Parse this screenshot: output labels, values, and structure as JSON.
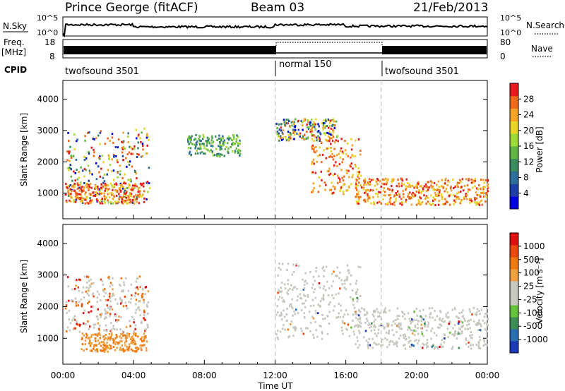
{
  "header": {
    "station": "Prince George (fitACF)",
    "beam": "Beam 03",
    "date": "21/Feb/2013"
  },
  "sky_panel": {
    "left_label": "N.Sky",
    "right_label": "N.Search",
    "left_ticks": [
      "10^5",
      "10^0"
    ],
    "right_ticks": [
      "10^5",
      "10^0"
    ],
    "log_scale": true
  },
  "freq_panel": {
    "label_line1": "Freq.",
    "label_line2": "[MHz]",
    "left_ticks": [
      "18",
      "8"
    ],
    "right_ticks": [
      "80",
      "0"
    ],
    "right_label": "Nave"
  },
  "cpid_panel": {
    "label": "CPID",
    "segments": [
      {
        "name": "twofsound 3501",
        "start_hour": 0,
        "end_hour": 12
      },
      {
        "name": "normal 150",
        "start_hour": 12,
        "end_hour": 18
      },
      {
        "name": "twofsound 3501",
        "start_hour": 18,
        "end_hour": 24
      }
    ]
  },
  "chart_data": [
    {
      "type": "heatmap",
      "ylabel": "Slant Range [km]",
      "xlabel": "Time UT",
      "xlim": [
        0,
        24
      ],
      "ylim": [
        180,
        4600
      ],
      "xticks": [
        "00:00",
        "04:00",
        "08:00",
        "12:00",
        "16:00",
        "20:00",
        "00:00"
      ],
      "yticks": [
        1000,
        2000,
        3000,
        4000
      ],
      "colorbar": {
        "label": "Power [dB]",
        "ticks": [
          "4",
          "8",
          "12",
          "16",
          "20",
          "24",
          "28"
        ],
        "colors": [
          "#0000e0",
          "#1e3fa8",
          "#2e6f9a",
          "#3a8a5f",
          "#5fb544",
          "#9ed93a",
          "#e7d52a",
          "#f5a326",
          "#f06a1c",
          "#e81c1c"
        ]
      },
      "regions": [
        {
          "from_hour": 0.1,
          "to_hour": 4.9,
          "range_km": [
            700,
            3100
          ],
          "level": "mixed",
          "note": ""
        },
        {
          "from_hour": 0.1,
          "to_hour": 4.6,
          "range_km": [
            700,
            1350
          ],
          "level": "high"
        },
        {
          "from_hour": 12.0,
          "to_hour": 15.5,
          "range_km": [
            2700,
            3400
          ],
          "level": "mixed"
        },
        {
          "from_hour": 14.0,
          "to_hour": 16.8,
          "range_km": [
            1000,
            2800
          ],
          "level": "high"
        },
        {
          "from_hour": 16.5,
          "to_hour": 24.0,
          "range_km": [
            650,
            1500
          ],
          "level": "high"
        },
        {
          "from_hour": 7.0,
          "to_hour": 10.0,
          "range_km": [
            2200,
            2900
          ],
          "level": "medium"
        }
      ]
    },
    {
      "type": "heatmap",
      "ylabel": "Slant Range [km]",
      "xlabel": "Time UT",
      "xlim": [
        0,
        24
      ],
      "ylim": [
        180,
        4600
      ],
      "xticks": [
        "00:00",
        "04:00",
        "08:00",
        "12:00",
        "16:00",
        "20:00",
        "00:00"
      ],
      "yticks": [
        1000,
        2000,
        3000,
        4000
      ],
      "colorbar": {
        "label": "Velocity [m s⁻¹]",
        "ticks": [
          "1000",
          "500",
          "100",
          "25",
          "-25",
          "-100",
          "-500",
          "-1000"
        ],
        "colors": [
          "#1c3ab8",
          "#2a6fb0",
          "#3d8d55",
          "#66c23a",
          "#c8c8c0",
          "#c8c8c0",
          "#f0a040",
          "#f07a10",
          "#e84a10",
          "#e01010"
        ]
      },
      "regions": [
        {
          "from_hour": 0.1,
          "to_hour": 4.8,
          "range_km": [
            1200,
            3000
          ],
          "level": "grey/orange"
        },
        {
          "from_hour": 1.0,
          "to_hour": 4.7,
          "range_km": [
            600,
            1200
          ],
          "level": "orange"
        },
        {
          "from_hour": 12.0,
          "to_hour": 16.8,
          "range_km": [
            1000,
            3400
          ],
          "level": "grey"
        },
        {
          "from_hour": 16.5,
          "to_hour": 24.0,
          "range_km": [
            700,
            2000
          ],
          "level": "grey"
        }
      ]
    }
  ]
}
